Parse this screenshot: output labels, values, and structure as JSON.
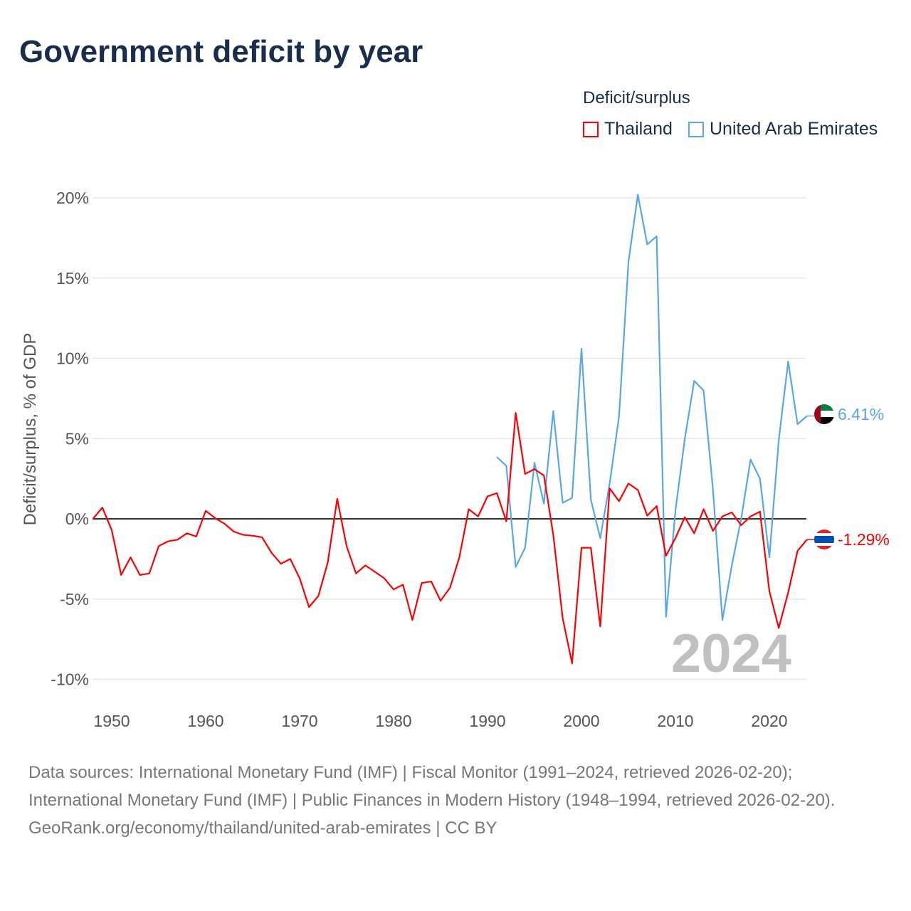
{
  "title": "Government deficit by year",
  "legend": {
    "title": "Deficit/surplus",
    "items": [
      {
        "name": "Thailand",
        "color": "#ff0000"
      },
      {
        "name": "United Arab Emirates",
        "color": "#5aa6ea"
      }
    ]
  },
  "chart_data": {
    "type": "line",
    "title": "Government deficit by year",
    "ylabel": "Deficit/surplus, % of GDP",
    "xlabel": "",
    "xlim": [
      1948,
      2024
    ],
    "ylim": [
      -11,
      21
    ],
    "yticks": [
      20,
      15,
      10,
      5,
      0,
      -5,
      -10
    ],
    "ytick_labels": [
      "20%",
      "15%",
      "10%",
      "5%",
      "0%",
      "-5%",
      "-10%"
    ],
    "xticks": [
      1950,
      1960,
      1970,
      1980,
      1990,
      2000,
      2010,
      2020
    ],
    "xtick_labels": [
      "1950",
      "1960",
      "1970",
      "1980",
      "1990",
      "2000",
      "2010",
      "2020"
    ],
    "grid": true,
    "legend_position": "top-right",
    "watermark_year": "2024",
    "series": [
      {
        "name": "Thailand",
        "color": "#ff0000",
        "end_label": "-1.29%",
        "flag": "thailand-flag",
        "x": [
          1948,
          1949,
          1950,
          1951,
          1952,
          1953,
          1954,
          1955,
          1956,
          1957,
          1958,
          1959,
          1960,
          1961,
          1962,
          1963,
          1964,
          1965,
          1966,
          1967,
          1968,
          1969,
          1970,
          1971,
          1972,
          1973,
          1974,
          1975,
          1976,
          1977,
          1978,
          1979,
          1980,
          1981,
          1982,
          1983,
          1984,
          1985,
          1986,
          1987,
          1988,
          1989,
          1990,
          1991,
          1992,
          1993,
          1994,
          1995,
          1996,
          1997,
          1998,
          1999,
          2000,
          2001,
          2002,
          2003,
          2004,
          2005,
          2006,
          2007,
          2008,
          2009,
          2010,
          2011,
          2012,
          2013,
          2014,
          2015,
          2016,
          2017,
          2018,
          2019,
          2020,
          2021,
          2022,
          2023,
          2024
        ],
        "values": [
          0,
          0.7,
          -0.7,
          -3.5,
          -2.4,
          -3.5,
          -3.4,
          -1.7,
          -1.4,
          -1.3,
          -0.9,
          -1.1,
          0.5,
          0.05,
          -0.3,
          -0.8,
          -1.0,
          -1.05,
          -1.15,
          -2.1,
          -2.8,
          -2.5,
          -3.7,
          -5.5,
          -4.8,
          -2.7,
          1.25,
          -1.7,
          -3.4,
          -2.9,
          -3.3,
          -3.7,
          -4.4,
          -4.1,
          -6.3,
          -4.0,
          -3.9,
          -5.1,
          -4.3,
          -2.4,
          0.6,
          0.15,
          1.4,
          1.6,
          -0.15,
          6.6,
          2.8,
          3.1,
          2.7,
          -1.0,
          -6.2,
          -9.0,
          -1.8,
          -1.8,
          -6.7,
          1.9,
          1.1,
          2.2,
          1.8,
          0.2,
          0.8,
          -2.3,
          -1.2,
          0.1,
          -0.9,
          0.6,
          -0.75,
          0.15,
          0.4,
          -0.4,
          0.15,
          0.45,
          -4.5,
          -6.8,
          -4.6,
          -2.0,
          -1.29
        ]
      },
      {
        "name": "United Arab Emirates",
        "color": "#5aa6ea",
        "end_label": "6.41%",
        "flag": "uae-flag",
        "x": [
          1991,
          1992,
          1993,
          1994,
          1995,
          1996,
          1997,
          1998,
          1999,
          2000,
          2001,
          2002,
          2003,
          2004,
          2005,
          2006,
          2007,
          2008,
          2009,
          2010,
          2011,
          2012,
          2013,
          2014,
          2015,
          2016,
          2017,
          2018,
          2019,
          2020,
          2021,
          2022,
          2023,
          2024
        ],
        "values": [
          3.85,
          3.3,
          -3.0,
          -1.8,
          3.5,
          0.95,
          6.7,
          1.0,
          1.3,
          10.6,
          1.2,
          -1.2,
          2.2,
          6.4,
          16.0,
          20.2,
          17.1,
          17.6,
          -6.1,
          0.5,
          5.0,
          8.6,
          8.0,
          1.8,
          -6.3,
          -2.9,
          0,
          3.7,
          2.5,
          -2.4,
          4.9,
          9.8,
          5.9,
          6.41
        ]
      }
    ]
  },
  "footer": {
    "sources": "Data sources: International Monetary Fund (IMF) | Fiscal Monitor (1991–2024, retrieved 2026-02-20); International Monetary Fund (IMF) | Public Finances in Modern History (1948–1994, retrieved 2026-02-20).",
    "credit": "GeoRank.org/economy/thailand/united-arab-emirates | CC BY"
  }
}
